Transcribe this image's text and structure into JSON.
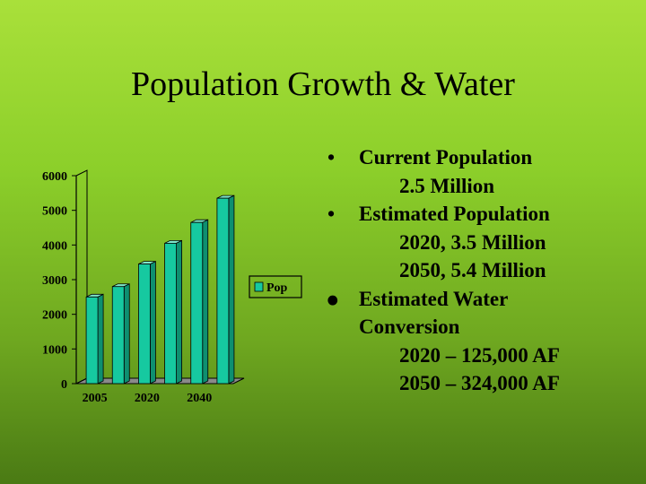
{
  "slide": {
    "title": "Population Growth & Water",
    "bullets": [
      {
        "marker": "•",
        "lines": [
          "Current Population"
        ],
        "sub": [
          "2.5 Million"
        ]
      },
      {
        "marker": "•",
        "lines": [
          "Estimated Population"
        ],
        "sub": [
          "2020, 3.5 Million",
          "2050, 5.4 Million"
        ]
      },
      {
        "marker": "⦁",
        "lines": [
          "Estimated Water",
          "Conversion"
        ],
        "sub": [
          "2020 – 125,000 AF",
          "2050 – 324,000 AF"
        ]
      }
    ]
  },
  "chart_data": {
    "type": "bar",
    "x_tick_labels": [
      "2005",
      "2020",
      "2040"
    ],
    "series": [
      {
        "name": "Pop",
        "values": [
          2500,
          2800,
          3450,
          4050,
          4650,
          5350
        ]
      }
    ],
    "y_ticks": [
      0,
      1000,
      2000,
      3000,
      4000,
      5000,
      6000
    ],
    "ylim": [
      0,
      6000
    ],
    "bar_color": "#16c9a0",
    "legend": {
      "label": "Pop",
      "placement": "right"
    },
    "grid": false
  }
}
